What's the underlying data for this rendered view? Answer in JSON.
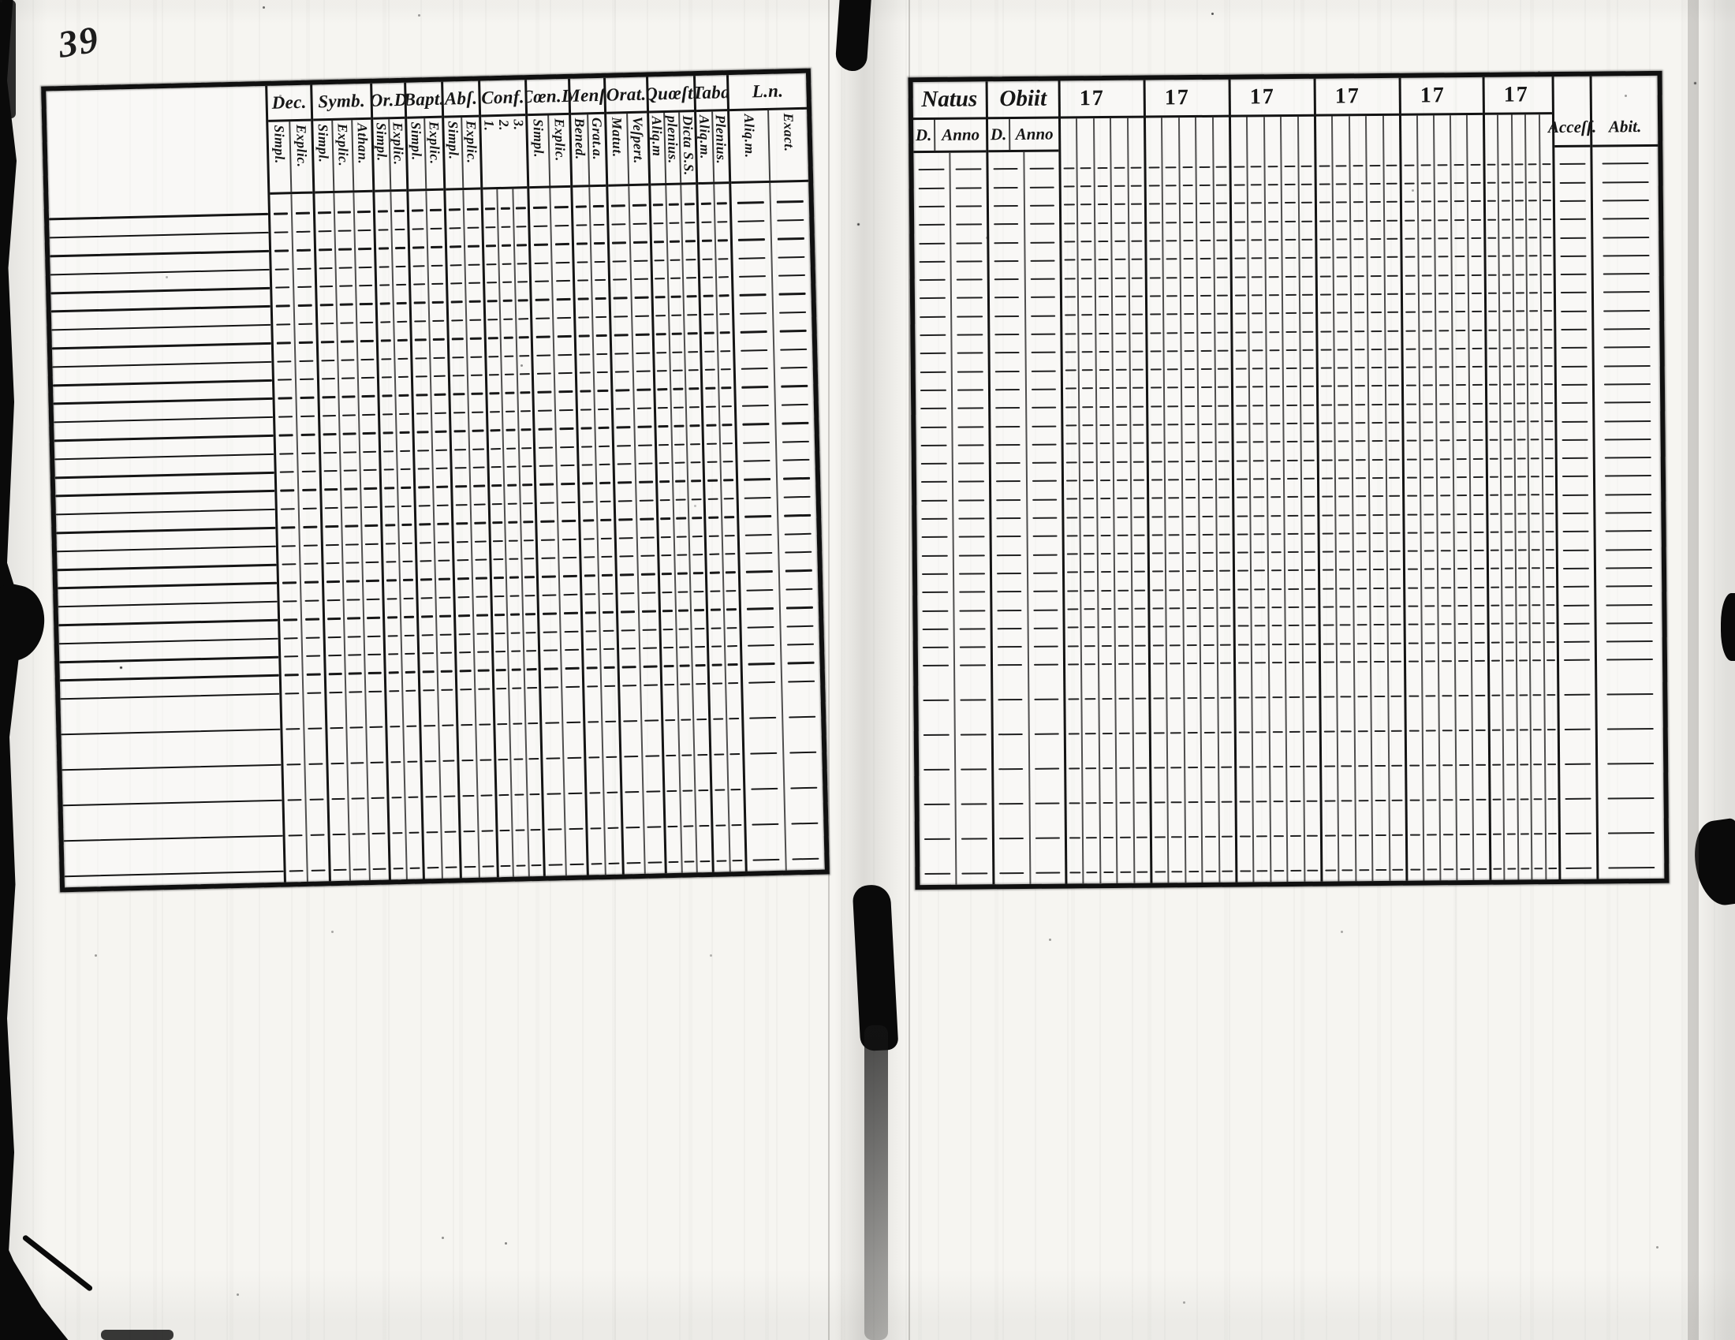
{
  "page_number": "39",
  "ink_color": "#161616",
  "paper_color": "#f6f5f1",
  "left_table": {
    "name_column_header": "",
    "dense_rows": 27,
    "sparse_rows": 5,
    "columns": [
      {
        "label": "Dec.",
        "sub": [
          "Simpl.",
          "Explic."
        ],
        "w": 57
      },
      {
        "label": "Symb.",
        "sub": [
          "Simpl.",
          "Explic.",
          "Athan."
        ],
        "w": 76
      },
      {
        "label": "Or.D",
        "sub": [
          "Simpl.",
          "Explic."
        ],
        "w": 43
      },
      {
        "label": "Bapt.",
        "sub": [
          "Simpl.",
          "Explic."
        ],
        "w": 47
      },
      {
        "label": "Abſ.",
        "sub": [
          "Simpl.",
          "Explic."
        ],
        "w": 47
      },
      {
        "label": "Conf.",
        "sub": [
          "1.",
          "2.",
          "3."
        ],
        "w": 59,
        "open_sub": true
      },
      {
        "label": "Cœn.D",
        "sub": [
          "Simpl.",
          "Explic."
        ],
        "w": 55
      },
      {
        "label": "Menſ.",
        "sub": [
          "Bened.",
          "Grat.a."
        ],
        "w": 45
      },
      {
        "label": "Orat.",
        "sub": [
          "Matut.",
          "Veſpert."
        ],
        "w": 54
      },
      {
        "label": "Quœſt.",
        "sub": [
          "Aliq.m",
          "plenius.",
          "Dicta S.S."
        ],
        "w": 60
      },
      {
        "label": "Taba",
        "sub": [
          "Aliq.m.",
          "Plenius."
        ],
        "w": 42
      },
      {
        "label": "L.n.",
        "sub": [
          "Aliq.m.",
          "Exact."
        ],
        "w": 0
      }
    ]
  },
  "right_table": {
    "dense_rows": 28,
    "sparse_rows": 6,
    "columns": [
      {
        "label": "Natus",
        "type": "dual",
        "sub": [
          "D.",
          "Anno"
        ],
        "w": 92
      },
      {
        "label": "Obiit",
        "type": "dual",
        "sub": [
          "D.",
          "Anno"
        ],
        "w": 92
      },
      {
        "label": "17",
        "type": "year",
        "strips": 5,
        "w": 108
      },
      {
        "label": "17",
        "type": "year",
        "strips": 5,
        "w": 108
      },
      {
        "label": "17",
        "type": "year",
        "strips": 5,
        "w": 108
      },
      {
        "label": "17",
        "type": "year",
        "strips": 5,
        "w": 108
      },
      {
        "label": "17",
        "type": "year",
        "strips": 5,
        "w": 106
      },
      {
        "label": "17",
        "type": "year",
        "strips": 5,
        "w": 88
      },
      {
        "label": "Acceſſ.",
        "type": "plain",
        "w": 48
      },
      {
        "label": "Abit.",
        "type": "plain",
        "w": 0
      }
    ]
  }
}
